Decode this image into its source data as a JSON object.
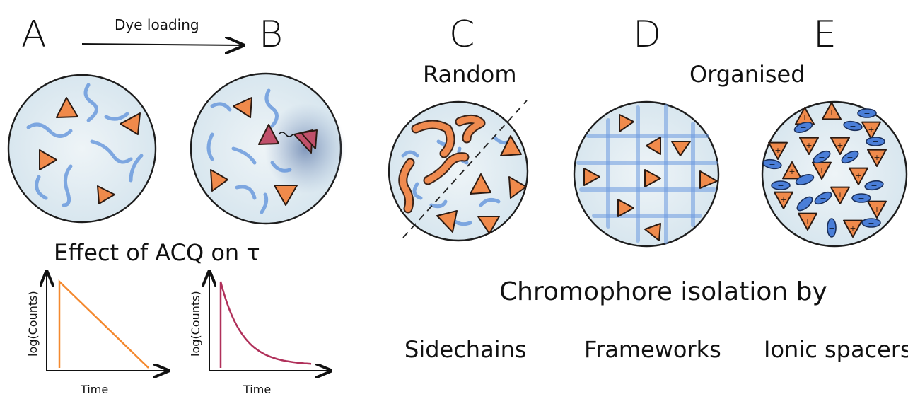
{
  "panels": {
    "a": "A",
    "b": "B",
    "c": "C",
    "d": "D",
    "e": "E"
  },
  "arrow_label": "Dye loading",
  "group_labels": {
    "random": "Random",
    "organised": "Organised"
  },
  "acq_title": "Effect of ACQ on τ",
  "decay_plots": [
    {
      "ylabel": "log(Counts)",
      "xlabel": "Time",
      "curve": "linear",
      "color": "#f4892f"
    },
    {
      "ylabel": "log(Counts)",
      "xlabel": "Time",
      "curve": "exponential",
      "color": "#b0305a"
    }
  ],
  "isolation_title": "Chromophore isolation by",
  "isolation_methods": [
    "Sidechains",
    "Frameworks",
    "Ionic spacers"
  ],
  "ion_signs": {
    "cation": "+",
    "anion": "−"
  },
  "colors": {
    "dye": "#f08a4b",
    "aggregate": "#c0506a",
    "blue": "#5b8fd9",
    "dish": "#e3edf3"
  }
}
